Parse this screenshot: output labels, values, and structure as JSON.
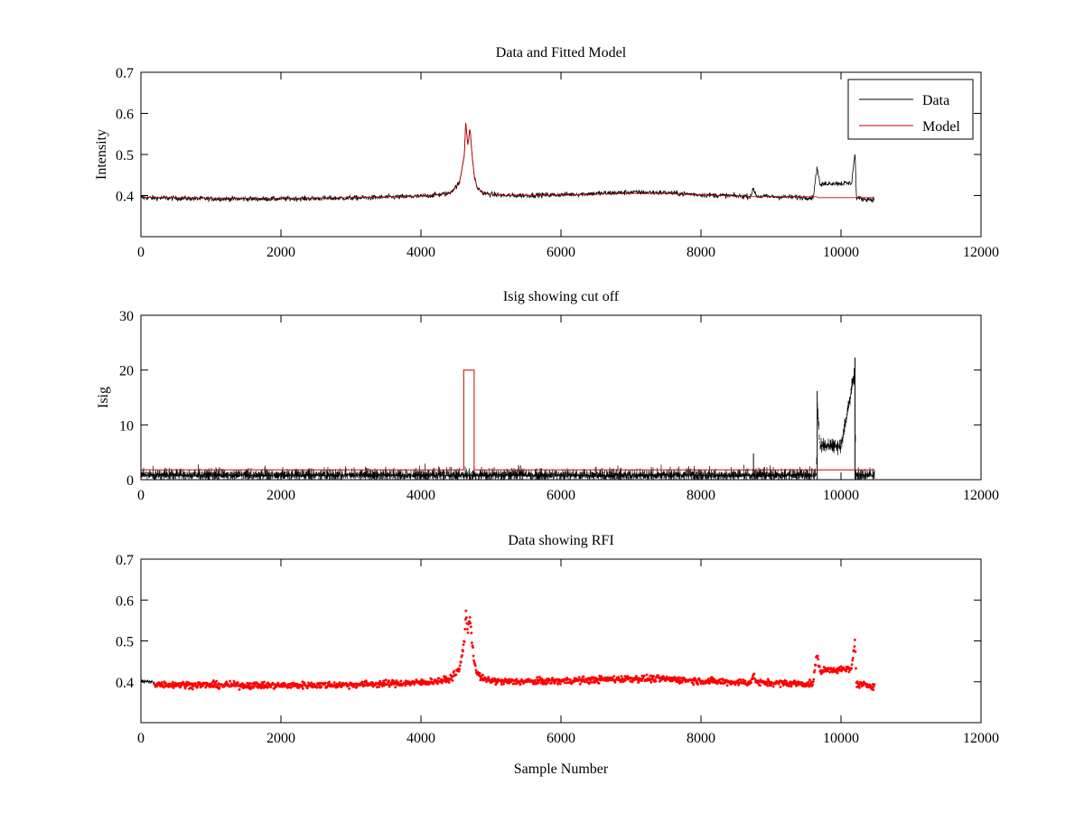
{
  "figure": {
    "background": "#ffffff",
    "data_color": "#000000",
    "model_color": "#cc0000",
    "rfi_color": "#ff0000"
  },
  "chart_data": [
    {
      "type": "line",
      "title": "Data and Fitted Model",
      "xlabel": "",
      "ylabel": "Intensity",
      "xlim": [
        0,
        12000
      ],
      "ylim": [
        0.3,
        0.7
      ],
      "xticks": [
        0,
        2000,
        4000,
        6000,
        8000,
        10000,
        12000
      ],
      "yticks": [
        0.4,
        0.5,
        0.6,
        0.7
      ],
      "xtick_labels": [
        "0",
        "2000",
        "4000",
        "6000",
        "8000",
        "10000",
        "12000"
      ],
      "ytick_labels": [
        "0.4",
        "0.5",
        "0.6",
        "0.7"
      ],
      "legend": {
        "position": "top-right",
        "entries": [
          "Data",
          "Model"
        ]
      },
      "series": [
        {
          "name": "Data",
          "color": "#000000",
          "noise": 0.006,
          "x": [
            0,
            1000,
            2000,
            3000,
            4000,
            4400,
            4550,
            4620,
            4640,
            4670,
            4700,
            4730,
            4760,
            4800,
            4900,
            5200,
            6000,
            6500,
            7000,
            7500,
            8000,
            8700,
            8750,
            8800,
            9600,
            9660,
            9700,
            9800,
            10000,
            10150,
            10200,
            10220,
            10300,
            10480
          ],
          "y": [
            0.395,
            0.392,
            0.392,
            0.394,
            0.398,
            0.405,
            0.43,
            0.5,
            0.58,
            0.52,
            0.565,
            0.5,
            0.45,
            0.42,
            0.405,
            0.4,
            0.402,
            0.405,
            0.408,
            0.407,
            0.402,
            0.398,
            0.415,
            0.398,
            0.395,
            0.47,
            0.425,
            0.43,
            0.43,
            0.43,
            0.505,
            0.395,
            0.392,
            0.39
          ]
        },
        {
          "name": "Model",
          "color": "#cc0000",
          "noise": 0,
          "x": [
            0,
            1000,
            2000,
            3000,
            4000,
            4400,
            4550,
            4620,
            4640,
            4670,
            4700,
            4730,
            4760,
            4800,
            4900,
            5200,
            6000,
            6500,
            7000,
            7500,
            8000,
            8700,
            9660,
            9670,
            10200,
            10210,
            10480
          ],
          "y": [
            0.396,
            0.394,
            0.393,
            0.395,
            0.399,
            0.405,
            0.43,
            0.5,
            0.58,
            0.52,
            0.565,
            0.5,
            0.45,
            0.42,
            0.405,
            0.4,
            0.401,
            0.403,
            0.405,
            0.405,
            0.401,
            0.398,
            0.397,
            0.395,
            0.395,
            0.395,
            0.395
          ]
        }
      ]
    },
    {
      "type": "line",
      "title": "Isig showing cut off",
      "xlabel": "",
      "ylabel": "Isig",
      "xlim": [
        0,
        12000
      ],
      "ylim": [
        0,
        30
      ],
      "xticks": [
        0,
        2000,
        4000,
        6000,
        8000,
        10000,
        12000
      ],
      "yticks": [
        0,
        10,
        20,
        30
      ],
      "xtick_labels": [
        "0",
        "2000",
        "4000",
        "6000",
        "8000",
        "10000",
        "12000"
      ],
      "ytick_labels": [
        "0",
        "10",
        "20",
        "30"
      ],
      "series": [
        {
          "name": "Isig",
          "color": "#000000",
          "style": "noise",
          "x": [
            0,
            9650,
            9660,
            9700,
            10000,
            10200,
            10210,
            10480
          ],
          "base": [
            0.8,
            0.8,
            14,
            6.2,
            6.0,
            20,
            0.8,
            0.8
          ],
          "amp": [
            1.4,
            1.4,
            2,
            1.5,
            1.5,
            2,
            1.4,
            1.4
          ]
        },
        {
          "name": "Cut off",
          "color": "#cc0000",
          "style": "line",
          "x": [
            0,
            4610,
            4610,
            4760,
            4760,
            9660,
            9660,
            10200,
            10200,
            10480
          ],
          "y": [
            1.8,
            1.8,
            20,
            20,
            1.8,
            1.8,
            1.8,
            1.8,
            1.8,
            1.8
          ]
        }
      ],
      "spikes": [
        {
          "x": 8750,
          "y": 4.8
        },
        {
          "x": 9660,
          "y": 16.2
        },
        {
          "x": 10200,
          "y": 22.3
        }
      ]
    },
    {
      "type": "scatter",
      "title": "Data showing RFI",
      "xlabel": "Sample Number",
      "ylabel": "",
      "xlim": [
        0,
        12000
      ],
      "ylim": [
        0.3,
        0.7
      ],
      "xticks": [
        0,
        2000,
        4000,
        6000,
        8000,
        10000,
        12000
      ],
      "yticks": [
        0.4,
        0.5,
        0.6,
        0.7
      ],
      "xtick_labels": [
        "0",
        "2000",
        "4000",
        "6000",
        "8000",
        "10000",
        "12000"
      ],
      "ytick_labels": [
        "0.4",
        "0.5",
        "0.6",
        "0.7"
      ],
      "series": [
        {
          "name": "Data",
          "color": "#000000",
          "style": "line",
          "noise": 0.006,
          "x": [
            0,
            200
          ],
          "y": [
            0.402,
            0.398
          ]
        },
        {
          "name": "RFI",
          "color": "#ff0000",
          "style": "markers",
          "noise": 0.008,
          "x": [
            200,
            1000,
            2000,
            3000,
            4000,
            4400,
            4550,
            4620,
            4640,
            4670,
            4700,
            4730,
            4760,
            4800,
            4900,
            5200,
            6000,
            6500,
            7000,
            7500,
            8000,
            8700,
            8750,
            8800,
            9600,
            9660,
            9700,
            9800,
            10000,
            10150,
            10200,
            10220,
            10300,
            10480
          ],
          "y": [
            0.394,
            0.392,
            0.391,
            0.393,
            0.398,
            0.405,
            0.43,
            0.5,
            0.575,
            0.52,
            0.56,
            0.5,
            0.45,
            0.42,
            0.405,
            0.4,
            0.402,
            0.405,
            0.408,
            0.407,
            0.402,
            0.398,
            0.415,
            0.398,
            0.395,
            0.47,
            0.425,
            0.43,
            0.43,
            0.43,
            0.505,
            0.395,
            0.392,
            0.39
          ]
        }
      ]
    }
  ]
}
